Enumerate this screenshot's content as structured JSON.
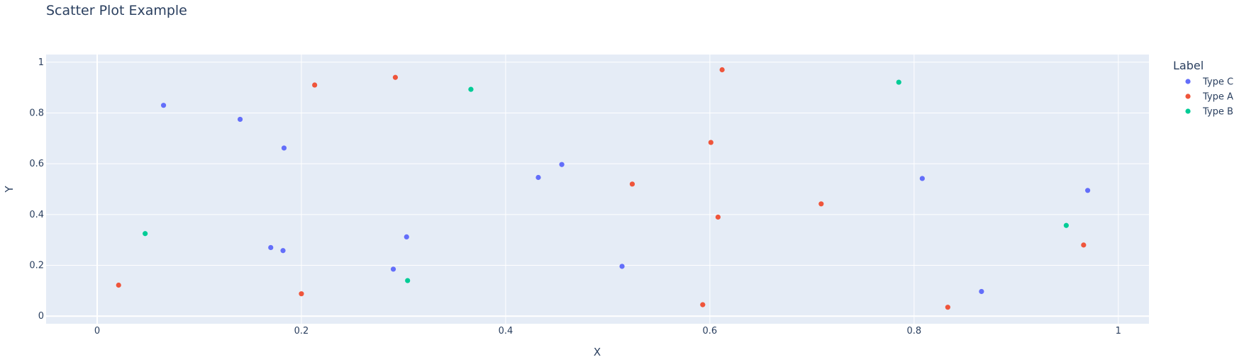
{
  "chart_data": {
    "type": "scatter",
    "title": "Scatter Plot Example",
    "xlabel": "X",
    "ylabel": "Y",
    "xlim": [
      -0.05,
      1.03
    ],
    "ylim": [
      -0.03,
      1.03
    ],
    "xticks": [
      0,
      0.2,
      0.4,
      0.6,
      0.8,
      1
    ],
    "yticks": [
      0,
      0.2,
      0.4,
      0.6,
      0.8,
      1
    ],
    "grid": true,
    "legend": {
      "title": "Label",
      "placement": "right"
    },
    "series": [
      {
        "name": "Type C",
        "color": "#636efa",
        "points": [
          [
            0.065,
            0.83
          ],
          [
            0.14,
            0.775
          ],
          [
            0.183,
            0.662
          ],
          [
            0.17,
            0.27
          ],
          [
            0.182,
            0.258
          ],
          [
            0.29,
            0.185
          ],
          [
            0.303,
            0.312
          ],
          [
            0.432,
            0.546
          ],
          [
            0.455,
            0.597
          ],
          [
            0.514,
            0.196
          ],
          [
            0.808,
            0.542
          ],
          [
            0.866,
            0.097
          ],
          [
            0.97,
            0.495
          ]
        ]
      },
      {
        "name": "Type A",
        "color": "#ef553b",
        "points": [
          [
            0.021,
            0.122
          ],
          [
            0.2,
            0.088
          ],
          [
            0.213,
            0.91
          ],
          [
            0.292,
            0.94
          ],
          [
            0.524,
            0.52
          ],
          [
            0.593,
            0.045
          ],
          [
            0.601,
            0.684
          ],
          [
            0.608,
            0.39
          ],
          [
            0.612,
            0.97
          ],
          [
            0.709,
            0.442
          ],
          [
            0.833,
            0.035
          ],
          [
            0.966,
            0.28
          ]
        ]
      },
      {
        "name": "Type B",
        "color": "#00cc96",
        "points": [
          [
            0.047,
            0.325
          ],
          [
            0.304,
            0.14
          ],
          [
            0.366,
            0.893
          ],
          [
            0.785,
            0.921
          ],
          [
            0.949,
            0.357
          ]
        ]
      }
    ]
  }
}
